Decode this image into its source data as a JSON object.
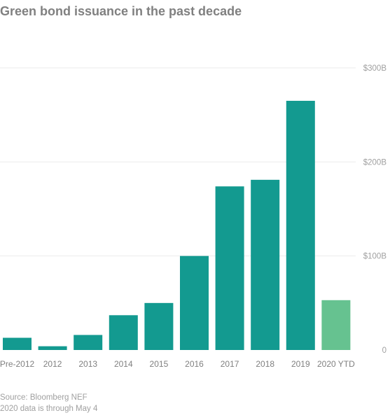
{
  "chart_data": {
    "type": "bar",
    "title": "Green bond issuance in the past decade",
    "categories": [
      "Pre-2012",
      "2012",
      "2013",
      "2014",
      "2015",
      "2016",
      "2017",
      "2018",
      "2019",
      "2020 YTD"
    ],
    "values": [
      13,
      4,
      16,
      37,
      50,
      100,
      174,
      181,
      265,
      53
    ],
    "y_ticks": [
      {
        "value": 0,
        "label": "0"
      },
      {
        "value": 100,
        "label": "$100B"
      },
      {
        "value": 200,
        "label": "$200B"
      },
      {
        "value": 300,
        "label": "$300B"
      }
    ],
    "ylim": [
      0,
      300
    ],
    "grid": true,
    "y_axis_side": "right",
    "colors": {
      "bar": "#139a90",
      "highlight_bar": "#66c290",
      "gridline": "#ebebeb",
      "tick_label": "#a0a0a0",
      "category_label": "#808080"
    },
    "highlight_category": "2020 YTD"
  },
  "footnotes": {
    "source": "Source: Bloomberg NEF",
    "note": "2020 data is through May 4"
  }
}
